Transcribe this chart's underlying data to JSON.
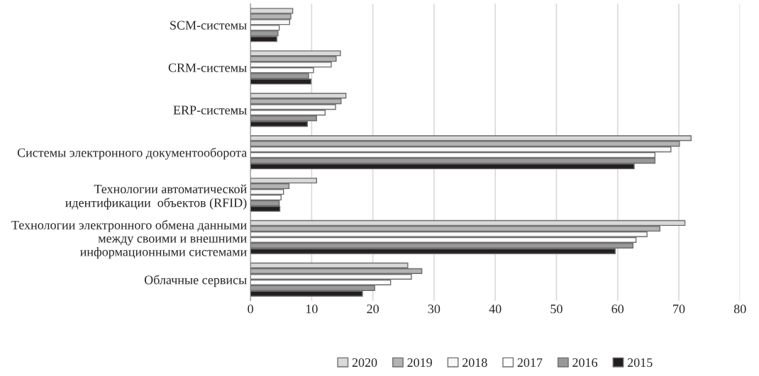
{
  "chart_data": {
    "type": "bar",
    "orientation": "horizontal",
    "categories": [
      "SCM-системы",
      "CRM-системы",
      "ERP-системы",
      "Системы электронного документооборота",
      "Технологии автоматической\nидентификации  объектов (RFID)",
      "Технологии электронного обмена данными\nмежду своими и внешними\nинформационными системами",
      "Облачные сервисы"
    ],
    "series": [
      {
        "name": "2020",
        "color": "#d9d9d9",
        "values": [
          6.9,
          14.7,
          15.6,
          72.0,
          10.8,
          71.0,
          25.7
        ]
      },
      {
        "name": "2019",
        "color": "#b3b3b3",
        "values": [
          6.6,
          14.0,
          14.8,
          70.1,
          6.3,
          66.9,
          28.0
        ]
      },
      {
        "name": "2018",
        "color": "#f7f7f7",
        "values": [
          6.4,
          13.2,
          13.9,
          68.7,
          5.4,
          64.8,
          26.3
        ]
      },
      {
        "name": "2017",
        "color": "#ffffff",
        "values": [
          4.7,
          10.3,
          12.2,
          66.1,
          5.0,
          63.0,
          22.9
        ]
      },
      {
        "name": "2016",
        "color": "#999999",
        "values": [
          4.5,
          9.5,
          10.8,
          66.1,
          4.7,
          62.5,
          20.3
        ]
      },
      {
        "name": "2015",
        "color": "#231f20",
        "values": [
          4.3,
          9.9,
          9.3,
          62.7,
          4.8,
          59.6,
          18.3
        ]
      }
    ],
    "xlim": [
      0,
      80
    ],
    "xticks": [
      0,
      10,
      20,
      30,
      40,
      50,
      60,
      70,
      80
    ],
    "grid": "x",
    "legend": "bottom"
  }
}
